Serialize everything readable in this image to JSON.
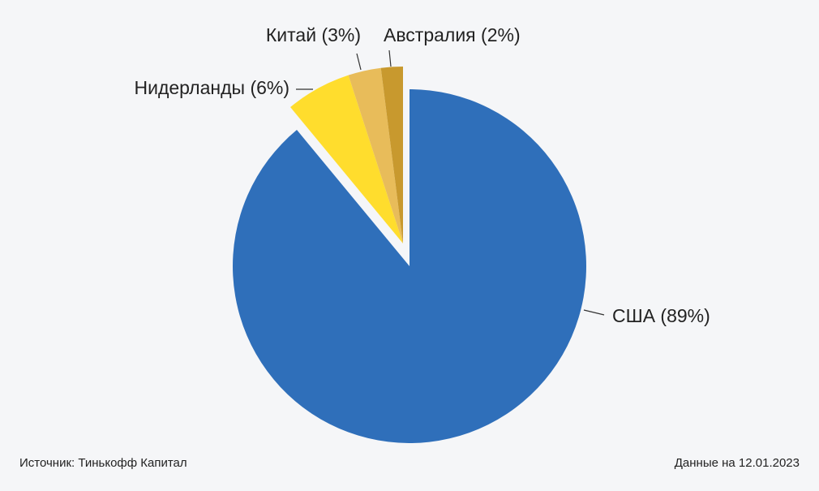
{
  "chart_data": {
    "type": "pie",
    "categories": [
      "США",
      "Нидерланды",
      "Китай",
      "Австралия"
    ],
    "values": [
      89,
      6,
      3,
      2
    ],
    "value_labels": [
      "(89%)",
      "(6%)",
      "(3%)",
      "(2%)"
    ],
    "colors": [
      "#2f6fba",
      "#ffdd2d",
      "#e8bc5a",
      "#c8992e"
    ],
    "explode": [
      false,
      true,
      true,
      true
    ],
    "source": "Источник: Тинькофф Капитал",
    "note": "Данные на 12.01.2023"
  }
}
